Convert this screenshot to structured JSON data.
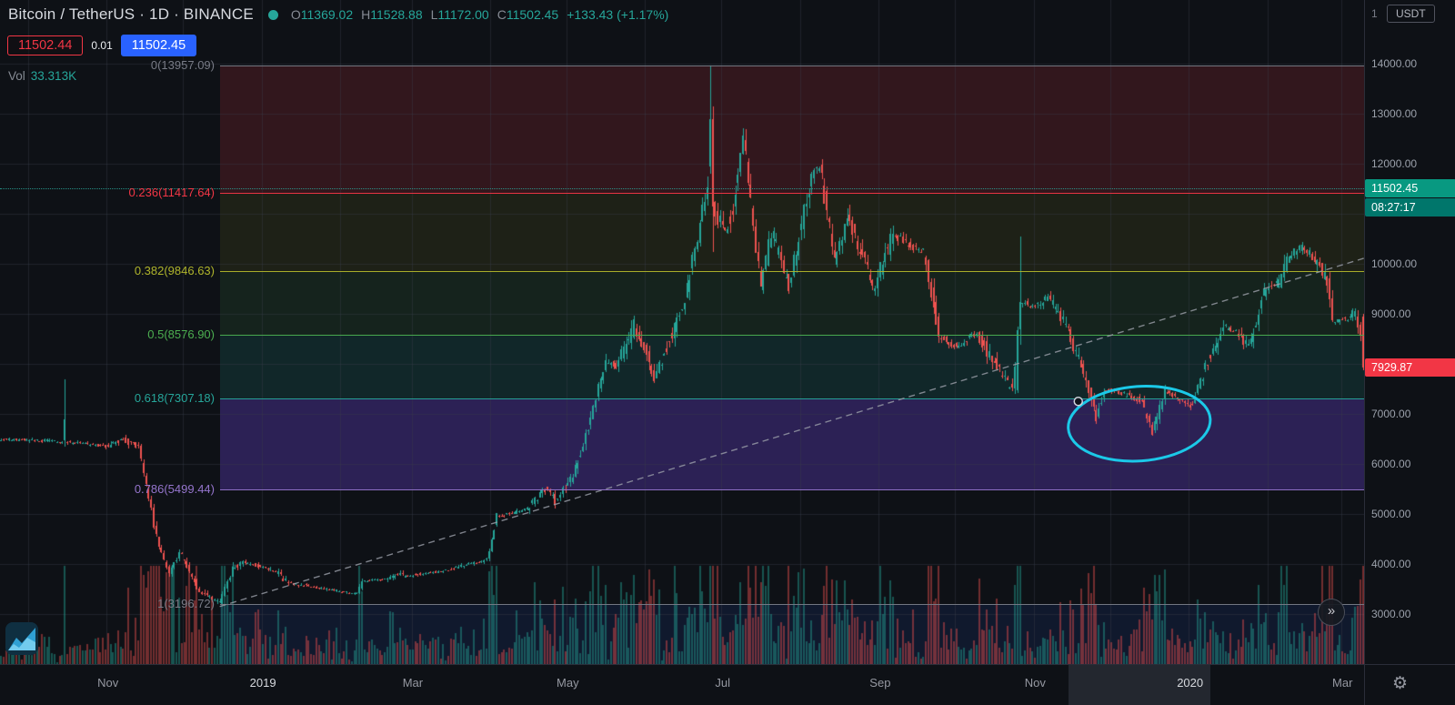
{
  "header": {
    "title": "Bitcoin / TetherUS · 1D · BINANCE",
    "ohlc_labels": {
      "o": "O",
      "h": "H",
      "l": "L",
      "c": "C"
    },
    "ohlc": {
      "open": "11369.02",
      "high": "11528.88",
      "low": "11172.00",
      "close": "11502.45",
      "change": "+133.43 (+1.17%)"
    },
    "bid": "11502.44",
    "spread": "0.01",
    "ask": "11502.45",
    "vol_label": "Vol",
    "vol_value": "33.313K"
  },
  "colors": {
    "background": "#0e1116",
    "grid": "rgba(58,62,73,0.42)",
    "up": "#26a69a",
    "down": "#ef5350",
    "last_price_tag_bg": "#089981",
    "countdown_bg": "#00766b",
    "alert_tag_bg": "#f23645",
    "trendline": "rgba(155,159,169,0.8)",
    "ellipse": "#1bc9e8"
  },
  "fib": {
    "start_date": "2018-12-15",
    "levels": [
      {
        "label": "0(13957.09)",
        "price": 13957.09,
        "color": "#787b86"
      },
      {
        "label": "0.236(11417.64)",
        "price": 11417.64,
        "color": "#f23645"
      },
      {
        "label": "0.382(9846.63)",
        "price": 9846.63,
        "color": "#afb42b"
      },
      {
        "label": "0.5(8576.90)",
        "price": 8576.9,
        "color": "#4caf50"
      },
      {
        "label": "0.618(7307.18)",
        "price": 7307.18,
        "color": "#26a69a"
      },
      {
        "label": "0.786(5499.44)",
        "price": 5499.44,
        "color": "#9575cd"
      },
      {
        "label": "1(3196.72)",
        "price": 3196.72,
        "color": "#787b86"
      }
    ],
    "band_fills": [
      "rgba(242,54,69,0.16)",
      "rgba(175,180,43,0.10)",
      "rgba(76,175,80,0.12)",
      "rgba(38,166,154,0.15)",
      "rgba(124,77,255,0.27)",
      "rgba(0,0,0,0)"
    ],
    "below_band_fill": "rgba(41,98,255,0.10)"
  },
  "drawings": {
    "trendline": {
      "from_date": "2018-12-15",
      "from_price": 3150,
      "to_date": "2020-03-12",
      "to_price": 10150,
      "style": "dashed"
    },
    "ellipse": {
      "from_date": "2019-11-14",
      "to_date": "2020-01-09",
      "price_high": 7550,
      "price_low": 6060
    },
    "anchor_point": {
      "date": "2019-11-18",
      "price": 7250
    }
  },
  "price_scale": {
    "pane_label": "1",
    "currency_button": "USDT",
    "ticks": [
      {
        "label": "14000.00",
        "price": 14000
      },
      {
        "label": "13000.00",
        "price": 13000
      },
      {
        "label": "12000.00",
        "price": 12000
      },
      {
        "label": "10000.00",
        "price": 10000
      },
      {
        "label": "9000.00",
        "price": 9000
      },
      {
        "label": "7000.00",
        "price": 7000
      },
      {
        "label": "6000.00",
        "price": 6000
      },
      {
        "label": "5000.00",
        "price": 5000
      },
      {
        "label": "4000.00",
        "price": 4000
      },
      {
        "label": "3000.00",
        "price": 3000
      }
    ],
    "last_price_tag": "11502.45",
    "last_price_value": 11502.45,
    "countdown": "08:27:17",
    "alert_tag": "7929.87",
    "alert_value": 7929.87
  },
  "time_scale": {
    "labels": [
      {
        "label": "Nov",
        "date": "2018-11-01",
        "major": false
      },
      {
        "label": "2019",
        "date": "2019-01-01",
        "major": true
      },
      {
        "label": "Mar",
        "date": "2019-03-01",
        "major": false
      },
      {
        "label": "May",
        "date": "2019-05-01",
        "major": false
      },
      {
        "label": "Jul",
        "date": "2019-07-01",
        "major": false
      },
      {
        "label": "Sep",
        "date": "2019-09-01",
        "major": false
      },
      {
        "label": "Nov",
        "date": "2019-11-01",
        "major": false
      },
      {
        "label": "2020",
        "date": "2020-01-01",
        "major": true
      },
      {
        "label": "Mar",
        "date": "2020-03-01",
        "major": false
      }
    ],
    "highlight_range": {
      "from": "2019-11-14",
      "to": "2020-01-09"
    }
  },
  "controls": {
    "scroll_to_recent": "»",
    "settings_icon": "⚙"
  },
  "chart_data": {
    "type": "candlestick",
    "title": "Bitcoin / TetherUS 1D BINANCE",
    "symbol": "BTC/USDT",
    "interval": "1D",
    "exchange": "BINANCE",
    "current_bar": {
      "open": 11369.02,
      "high": 11528.88,
      "low": 11172.0,
      "close": 11502.45,
      "change_abs": 133.43,
      "change_pct": 1.17,
      "volume_display": "33.313K"
    },
    "current_price": 11502.45,
    "last_visible_close": 7929.87,
    "x_range": {
      "start": "2018-09-20",
      "end": "2020-03-10"
    },
    "visible_price_range": [
      2000,
      15270
    ],
    "axis": {
      "price_a": 3000,
      "y_a": 675,
      "price_b": 14000,
      "y_b": 70
    },
    "grid": {
      "h_step": 1000,
      "h_min": 3000,
      "h_max": 14000,
      "v": "monthly"
    },
    "price_path": [
      [
        "2018-09-20",
        6500
      ],
      [
        "2018-10-13",
        6450
      ],
      [
        "2018-10-31",
        6350
      ],
      [
        "2018-11-07",
        6500
      ],
      [
        "2018-11-13",
        6320
      ],
      [
        "2018-11-20",
        4550
      ],
      [
        "2018-11-25",
        3780
      ],
      [
        "2018-11-29",
        4250
      ],
      [
        "2018-12-07",
        3450
      ],
      [
        "2018-12-15",
        3220
      ],
      [
        "2018-12-20",
        3900
      ],
      [
        "2018-12-24",
        4050
      ],
      [
        "2019-01-06",
        3850
      ],
      [
        "2019-01-11",
        3620
      ],
      [
        "2019-01-28",
        3480
      ],
      [
        "2019-02-07",
        3400
      ],
      [
        "2019-02-09",
        3650
      ],
      [
        "2019-02-18",
        3700
      ],
      [
        "2019-02-24",
        3820
      ],
      [
        "2019-02-25",
        3750
      ],
      [
        "2019-03-15",
        3880
      ],
      [
        "2019-03-30",
        4100
      ],
      [
        "2019-04-03",
        4950
      ],
      [
        "2019-04-15",
        5100
      ],
      [
        "2019-04-23",
        5520
      ],
      [
        "2019-04-26",
        5250
      ],
      [
        "2019-05-03",
        5750
      ],
      [
        "2019-05-11",
        7100
      ],
      [
        "2019-05-16",
        8050
      ],
      [
        "2019-05-20",
        7950
      ],
      [
        "2019-05-27",
        8750
      ],
      [
        "2019-05-31",
        8300
      ],
      [
        "2019-06-04",
        7680
      ],
      [
        "2019-06-16",
        9300
      ],
      [
        "2019-06-22",
        10800
      ],
      [
        "2019-06-25",
        11700
      ],
      [
        "2019-06-26",
        12900
      ],
      [
        "2019-06-27",
        11150
      ],
      [
        "2019-07-02",
        10650
      ],
      [
        "2019-07-05",
        11100
      ],
      [
        "2019-07-09",
        12600
      ],
      [
        "2019-07-10",
        12100
      ],
      [
        "2019-07-14",
        10300
      ],
      [
        "2019-07-16",
        9500
      ],
      [
        "2019-07-20",
        10650
      ],
      [
        "2019-07-27",
        9550
      ],
      [
        "2019-08-05",
        11800
      ],
      [
        "2019-08-08",
        11950
      ],
      [
        "2019-08-14",
        10050
      ],
      [
        "2019-08-19",
        10900
      ],
      [
        "2019-08-28",
        9750
      ],
      [
        "2019-08-29",
        9500
      ],
      [
        "2019-09-06",
        10600
      ],
      [
        "2019-09-13",
        10350
      ],
      [
        "2019-09-18",
        10250
      ],
      [
        "2019-09-24",
        8550
      ],
      [
        "2019-10-01",
        8350
      ],
      [
        "2019-10-09",
        8600
      ],
      [
        "2019-10-16",
        8000
      ],
      [
        "2019-10-23",
        7450
      ],
      [
        "2019-10-26",
        9250
      ],
      [
        "2019-11-01",
        9150
      ],
      [
        "2019-11-06",
        9350
      ],
      [
        "2019-11-14",
        8700
      ],
      [
        "2019-11-21",
        7600
      ],
      [
        "2019-11-25",
        6950
      ],
      [
        "2019-11-28",
        7500
      ],
      [
        "2019-12-06",
        7400
      ],
      [
        "2019-12-13",
        7250
      ],
      [
        "2019-12-17",
        6650
      ],
      [
        "2019-12-22",
        7450
      ],
      [
        "2019-12-28",
        7300
      ],
      [
        "2020-01-02",
        7150
      ],
      [
        "2020-01-07",
        7950
      ],
      [
        "2020-01-14",
        8750
      ],
      [
        "2020-01-19",
        8650
      ],
      [
        "2020-01-24",
        8350
      ],
      [
        "2020-01-30",
        9400
      ],
      [
        "2020-02-05",
        9650
      ],
      [
        "2020-02-09",
        10150
      ],
      [
        "2020-02-14",
        10350
      ],
      [
        "2020-02-18",
        10150
      ],
      [
        "2020-02-24",
        9650
      ],
      [
        "2020-02-26",
        8850
      ],
      [
        "2020-03-02",
        8900
      ],
      [
        "2020-03-06",
        9050
      ],
      [
        "2020-03-08",
        8600
      ],
      [
        "2020-03-09",
        7950
      ]
    ],
    "specials": {
      "2018-10-15": [
        6480,
        7700,
        6350,
        6900
      ],
      "2019-06-26": [
        11950,
        13957,
        11800,
        12890
      ],
      "2019-06-27": [
        12890,
        13150,
        10250,
        11150
      ],
      "2019-10-25": [
        7480,
        8740,
        7420,
        8680
      ],
      "2019-10-26": [
        8680,
        10540,
        8380,
        9230
      ],
      "2020-03-09": [
        8950,
        9000,
        7880,
        7929.87
      ]
    }
  }
}
